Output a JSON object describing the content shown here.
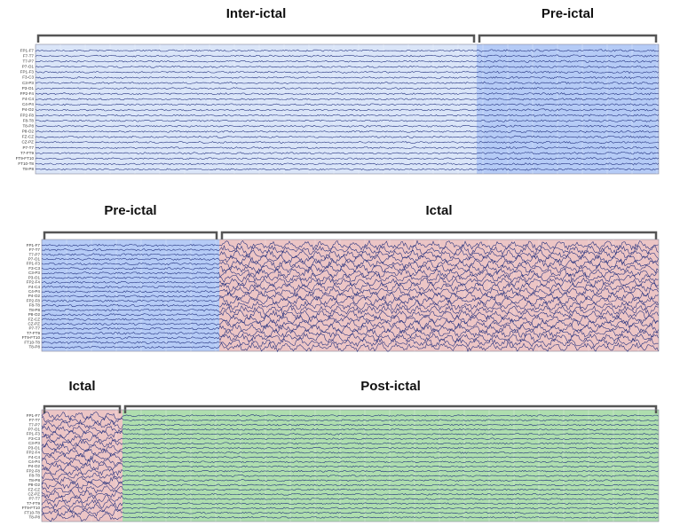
{
  "panels": [
    {
      "segments": [
        {
          "label": "Inter-ictal"
        },
        {
          "label": "Pre-ictal"
        }
      ]
    },
    {
      "segments": [
        {
          "label": "Pre-ictal"
        },
        {
          "label": "Ictal"
        }
      ]
    },
    {
      "segments": [
        {
          "label": "Ictal"
        },
        {
          "label": "Post-ictal"
        }
      ]
    }
  ],
  "channels": [
    "FP1-F7",
    "F7-T7",
    "T7-P7",
    "P7-O1",
    "FP1-F3",
    "F3-C3",
    "C3-P3",
    "P3-O1",
    "FP2-F4",
    "F4-C4",
    "C4-P4",
    "P4-O2",
    "FP2-F8",
    "F8-T8",
    "T8-P8",
    "P8-O2",
    "FZ-CZ",
    "CZ-PZ",
    "P7-T7",
    "T7-FT9",
    "FT9-FT10",
    "FT10-T8",
    "T8-P8"
  ]
}
